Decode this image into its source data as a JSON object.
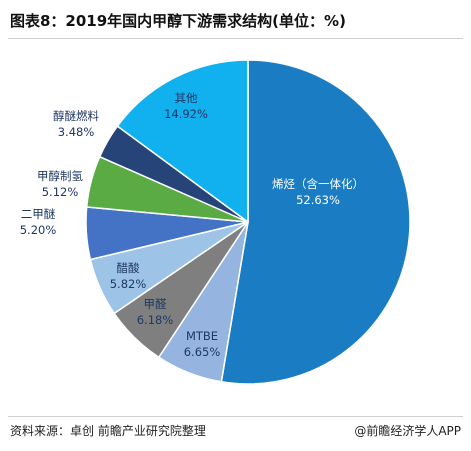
{
  "header": {
    "title": "图表8：2019年国内甲醇下游需求结构(单位：%)"
  },
  "footer": {
    "source": "资料来源：卓创 前瞻产业研究院整理",
    "brand": "@前瞻经济学人APP"
  },
  "chart_data": {
    "type": "pie",
    "title": "图表8：2019年国内甲醇下游需求结构(单位：%)",
    "unit": "%",
    "slices": [
      {
        "name": "烯烃（含一体化）",
        "value": 52.63,
        "label": "52.63%",
        "color": "#1a7dc4"
      },
      {
        "name": "MTBE",
        "value": 6.65,
        "label": "6.65%",
        "color": "#95b4df"
      },
      {
        "name": "甲醛",
        "value": 6.18,
        "label": "6.18%",
        "color": "#7f7f7f"
      },
      {
        "name": "醋酸",
        "value": 5.82,
        "label": "5.82%",
        "color": "#9dc3e6"
      },
      {
        "name": "二甲醚",
        "value": 5.2,
        "label": "5.20%",
        "color": "#4472c4"
      },
      {
        "name": "甲醇制氢",
        "value": 5.12,
        "label": "5.12%",
        "color": "#5aab44"
      },
      {
        "name": "醇醚燃料",
        "value": 3.48,
        "label": "3.48%",
        "color": "#264478"
      },
      {
        "name": "其他",
        "value": 14.92,
        "label": "14.92%",
        "color": "#11b0ee"
      }
    ],
    "legend": "none"
  }
}
